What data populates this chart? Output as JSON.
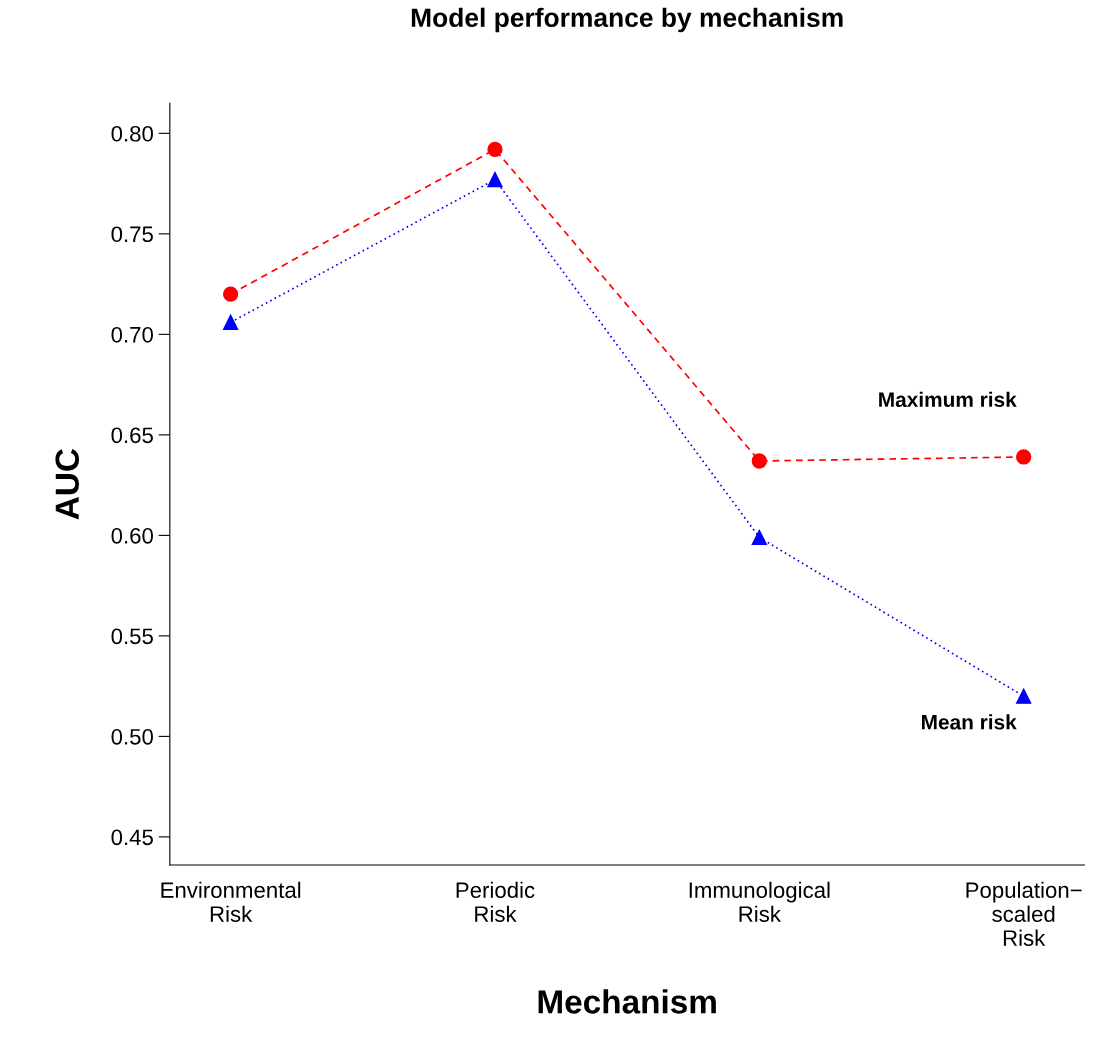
{
  "chart_data": {
    "type": "line",
    "title": "Model performance by mechanism",
    "xlabel": "Mechanism",
    "ylabel": "AUC",
    "categories": [
      "Environmental\nRisk",
      "Periodic\nRisk",
      "Immunological\nRisk",
      "Population−\nscaled\nRisk"
    ],
    "series": [
      {
        "name": "Maximum risk",
        "color": "#ff0000",
        "marker": "circle",
        "line_style": "dashed",
        "values": [
          0.72,
          0.792,
          0.637,
          0.639
        ]
      },
      {
        "name": "Mean risk",
        "color": "#0000ff",
        "marker": "triangle",
        "line_style": "dotted",
        "values": [
          0.706,
          0.777,
          0.599,
          0.52
        ]
      }
    ],
    "ylim": [
      0.436,
      0.815
    ],
    "yticks": [
      {
        "value": 0.45,
        "label": "0.45"
      },
      {
        "value": 0.5,
        "label": "0.50"
      },
      {
        "value": 0.55,
        "label": "0.55"
      },
      {
        "value": 0.6,
        "label": "0.60"
      },
      {
        "value": 0.65,
        "label": "0.65"
      },
      {
        "value": 0.7,
        "label": "0.70"
      },
      {
        "value": 0.75,
        "label": "0.75"
      },
      {
        "value": 0.8,
        "label": "0.80"
      }
    ],
    "grid": false,
    "legend": false
  }
}
